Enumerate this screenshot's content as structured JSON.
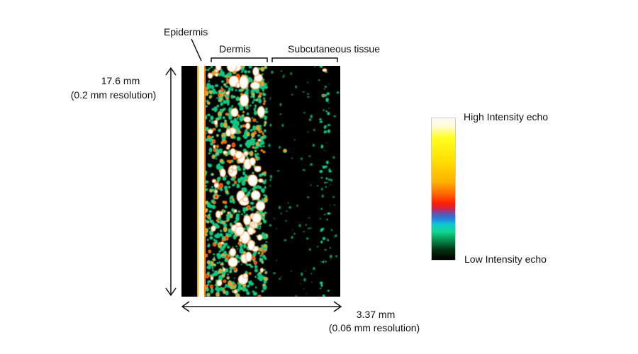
{
  "labels": {
    "epidermis": "Epidermis",
    "dermis": "Dermis",
    "subcutaneous": "Subcutaneous tissue",
    "height_value": "17.6 mm",
    "height_resolution": "(0.2 mm resolution)",
    "width_value": "3.37 mm",
    "width_resolution": "(0.06 mm resolution)"
  },
  "colorbar": {
    "high_label": "High Intensity echo",
    "low_label": "Low Intensity echo",
    "stops": [
      "#fff8f4",
      "#ffff20",
      "#ffe000",
      "#ffb000",
      "#ff6a00",
      "#ff2000",
      "#6a50a8",
      "#2080e0",
      "#10c8d0",
      "#10d890",
      "#069050",
      "#000000"
    ]
  },
  "colors": {
    "band": "#ffffff",
    "speckle_low": "#10c880",
    "speckle_mid": "#ff9a00",
    "speckle_high": "#ff2a10",
    "background": "#000000"
  }
}
